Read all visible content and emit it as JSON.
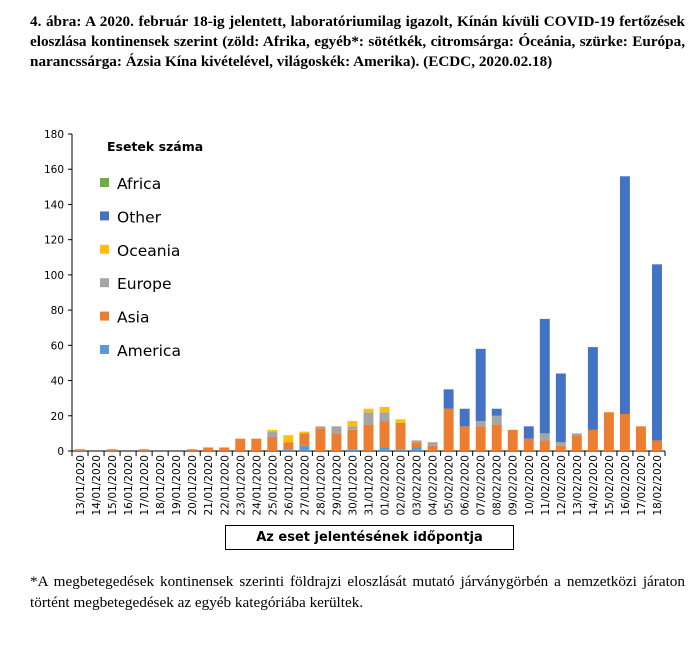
{
  "caption": "4. ábra: A 2020. február 18-ig jelentett, laboratóriumilag igazolt, Kínán kívüli COVID-19 fertőzések eloszlása kontinensek szerint (zöld: Afrika, egyéb*: sötétkék, citromsárga: Óceánia, szürke: Európa, narancssárga: Ázsia Kína kivételével, világoskék: Amerika). (ECDC, 2020.02.18)",
  "footnote": "*A megbetegedések kontinensek szerinti földrajzi eloszlását mutató járványgörbén a nemzetközi járaton történt megbetegedések az egyéb kategóriába kerültek.",
  "colors": {
    "Africa": "#70ad47",
    "Other": "#4472c4",
    "Oceania": "#ffc000",
    "Europe": "#a5a5a5",
    "Asia": "#ed7d31",
    "America": "#5b9bd5"
  },
  "chart_data": {
    "type": "bar",
    "stacked": true,
    "title": "Esetek száma",
    "xlabel": "Az eset jelentésének időpontja",
    "ylabel": "",
    "ylim": [
      0,
      180
    ],
    "yticks": [
      0,
      20,
      40,
      60,
      80,
      100,
      120,
      140,
      160,
      180
    ],
    "legend_position": "top-left",
    "legend_order": [
      "Africa",
      "Other",
      "Oceania",
      "Europe",
      "Asia",
      "America"
    ],
    "grid": false,
    "categories": [
      "13/01/2020",
      "14/01/2020",
      "15/01/2020",
      "16/01/2020",
      "17/01/2020",
      "18/01/2020",
      "19/01/2020",
      "20/01/2020",
      "21/01/2020",
      "22/01/2020",
      "23/01/2020",
      "24/01/2020",
      "25/01/2020",
      "26/01/2020",
      "27/01/2020",
      "28/01/2020",
      "29/01/2020",
      "30/01/2020",
      "31/01/2020",
      "01/02/2020",
      "02/02/2020",
      "03/02/2020",
      "04/02/2020",
      "05/02/2020",
      "06/02/2020",
      "07/02/2020",
      "08/02/2020",
      "09/02/2020",
      "10/02/2020",
      "11/02/2020",
      "12/02/2020",
      "13/02/2020",
      "14/02/2020",
      "15/02/2020",
      "16/02/2020",
      "17/02/2020",
      "18/02/2020"
    ],
    "series": [
      {
        "name": "America",
        "values": [
          0,
          0,
          0,
          0,
          0,
          0,
          0,
          0,
          0,
          0,
          0,
          0,
          0,
          1,
          3,
          0,
          0,
          1,
          0,
          2,
          1,
          2,
          0,
          0,
          0,
          0,
          0,
          0,
          0,
          0,
          0,
          0,
          0,
          0,
          0,
          0,
          0
        ]
      },
      {
        "name": "Asia",
        "values": [
          1,
          0,
          1,
          0,
          1,
          0,
          0,
          1,
          2,
          2,
          7,
          7,
          8,
          4,
          7,
          13,
          10,
          11,
          15,
          15,
          15,
          3,
          3,
          24,
          14,
          14,
          15,
          12,
          7,
          6,
          3,
          9,
          12,
          22,
          21,
          14,
          6
        ]
      },
      {
        "name": "Europe",
        "values": [
          0,
          0,
          0,
          0,
          0,
          0,
          0,
          0,
          0,
          0,
          0,
          0,
          3,
          0,
          0,
          1,
          4,
          2,
          7,
          5,
          0,
          1,
          2,
          0,
          0,
          3,
          5,
          0,
          0,
          4,
          2,
          1,
          0,
          0,
          0,
          0,
          0
        ]
      },
      {
        "name": "Oceania",
        "values": [
          0,
          0,
          0,
          0,
          0,
          0,
          0,
          0,
          0,
          0,
          0,
          0,
          1,
          4,
          1,
          0,
          0,
          3,
          2,
          3,
          2,
          0,
          0,
          0,
          0,
          0,
          0,
          0,
          0,
          0,
          0,
          0,
          0,
          0,
          0,
          0,
          0
        ]
      },
      {
        "name": "Other",
        "values": [
          0,
          0,
          0,
          0,
          0,
          0,
          0,
          0,
          0,
          0,
          0,
          0,
          0,
          0,
          0,
          0,
          0,
          0,
          0,
          0,
          0,
          0,
          0,
          11,
          10,
          41,
          4,
          0,
          7,
          65,
          39,
          0,
          47,
          0,
          135,
          0,
          100
        ]
      },
      {
        "name": "Africa",
        "values": [
          0,
          0,
          0,
          0,
          0,
          0,
          0,
          0,
          0,
          0,
          0,
          0,
          0,
          0,
          0,
          0,
          0,
          0,
          0,
          0,
          0,
          0,
          0,
          0,
          0,
          0,
          0,
          0,
          0,
          0,
          0,
          0,
          0,
          0,
          0,
          0,
          0
        ]
      }
    ]
  }
}
